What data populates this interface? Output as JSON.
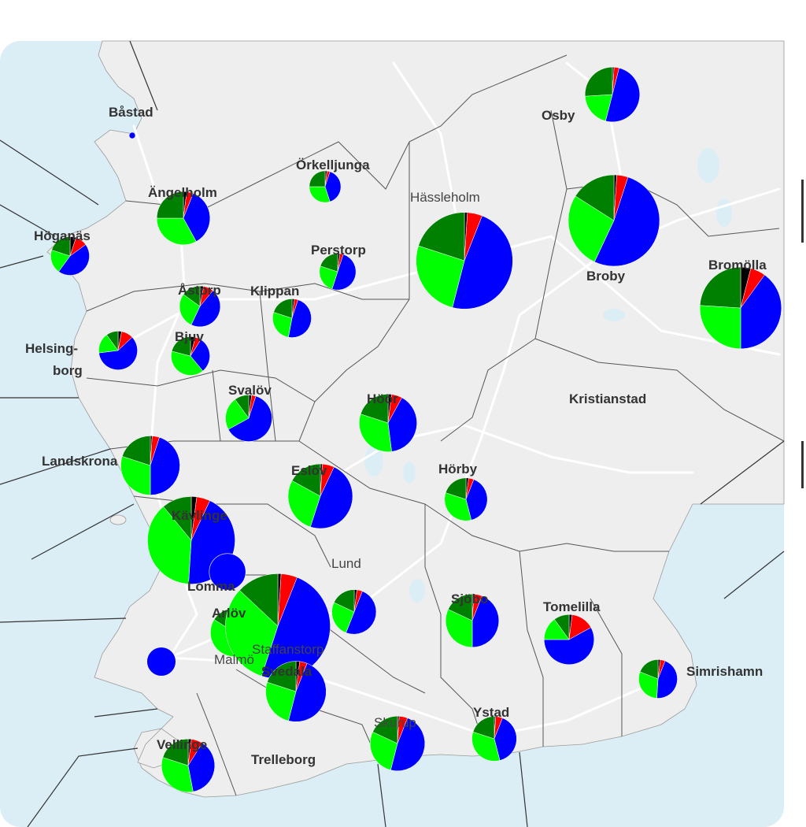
{
  "colors": {
    "sea": "#dbeef6",
    "land": "#eeeeee",
    "road": "#ffffff",
    "border": "#555555",
    "black": "#000000",
    "red": "#ff0000",
    "dark_green": "#008000",
    "light_green": "#00ff00",
    "blue": "#0000ff",
    "pie_outline": "#ffffff"
  },
  "slice_colors": [
    "#000000",
    "#ff0000",
    "#0000ff",
    "#00ff00",
    "#008000"
  ],
  "places": [
    {
      "name": "Båstad",
      "weight": "bold",
      "pie": [
        0,
        0,
        100,
        0,
        0
      ],
      "size": 3
    },
    {
      "name": "Osby",
      "weight": "bold",
      "pie": [
        1,
        3,
        50,
        20,
        26
      ],
      "size": 18
    },
    {
      "name": "Örkelljunga",
      "weight": "bold",
      "pie": [
        2,
        3,
        40,
        30,
        25
      ],
      "size": 6
    },
    {
      "name": "Ängelholm",
      "weight": "bold",
      "pie": [
        2,
        4,
        36,
        33,
        25
      ],
      "size": 17
    },
    {
      "name": "Hässleholm",
      "weight": "normal",
      "pie": [
        1,
        5,
        48,
        26,
        20
      ],
      "size": 56
    },
    {
      "name": "Höganäs",
      "weight": "bold",
      "pie": [
        5,
        10,
        45,
        20,
        20
      ],
      "size": 9
    },
    {
      "name": "Perstorp",
      "weight": "bold",
      "pie": [
        2,
        3,
        50,
        25,
        20
      ],
      "size": 8
    },
    {
      "name": "Broby",
      "weight": "bold",
      "pie": [
        1,
        4,
        52,
        27,
        16
      ],
      "size": 50
    },
    {
      "name": "Bromölla",
      "weight": "bold",
      "pie": [
        4,
        6,
        40,
        26,
        24
      ],
      "size": 40
    },
    {
      "name": "Åstorp",
      "weight": "bold",
      "pie": [
        3,
        8,
        46,
        28,
        15
      ],
      "size": 10
    },
    {
      "name": "Klippan",
      "weight": "bold",
      "pie": [
        2,
        3,
        48,
        27,
        20
      ],
      "size": 9
    },
    {
      "name": "Helsing-",
      "weight": "bold"
    },
    {
      "name": "borg",
      "weight": "bold"
    },
    {
      "name": "Bjuv",
      "weight": "bold",
      "pie": [
        3,
        10,
        60,
        17,
        10
      ],
      "size": 9
    },
    {
      "name": "Svalöv",
      "weight": "bold",
      "pie": [
        4,
        5,
        30,
        40,
        21
      ],
      "size": 9
    },
    {
      "name": "Höör",
      "weight": "bold",
      "pie": [
        2,
        3,
        62,
        23,
        10
      ],
      "size": 13
    },
    {
      "name": "Kristianstad",
      "weight": "bold"
    },
    {
      "name": "Landskrona",
      "weight": "bold",
      "pie": [
        2,
        6,
        40,
        32,
        20
      ],
      "size": 20
    },
    {
      "name": "Eslöv",
      "weight": "bold",
      "pie": [
        1,
        4,
        45,
        30,
        20
      ],
      "size": 21
    },
    {
      "name": "Hörby",
      "weight": "bold",
      "pie": [
        1,
        6,
        48,
        28,
        17
      ],
      "size": 25
    },
    {
      "name": "Kävlinge",
      "weight": "bold",
      "pie": [
        2,
        4,
        40,
        34,
        20
      ],
      "size": 11
    },
    {
      "name": "Lund",
      "weight": "normal",
      "pie": [
        2,
        5,
        44,
        38,
        11
      ],
      "size": 46
    },
    {
      "name": "Lomma",
      "weight": "bold",
      "pie": [
        0,
        0,
        100,
        0,
        0
      ],
      "size": 8
    },
    {
      "name": "Sjöbo",
      "weight": "bold",
      "pie": [
        2,
        4,
        50,
        26,
        18
      ],
      "size": 12
    },
    {
      "name": "Tomelilla",
      "weight": "bold",
      "pie": [
        1,
        5,
        44,
        32,
        18
      ],
      "size": 17
    },
    {
      "name": "Arlöv",
      "weight": "bold",
      "pie": [
        2,
        15,
        58,
        15,
        10
      ],
      "size": 15
    },
    {
      "name": "Staffanstorp",
      "weight": "normal",
      "pie": [
        2,
        6,
        40,
        36,
        16
      ],
      "size": 14
    },
    {
      "name": "Malmö",
      "weight": "normal",
      "pie": [
        1,
        5,
        49,
        32,
        13
      ],
      "size": 66
    },
    {
      "name": "Svedala",
      "weight": "bold",
      "pie": [
        0,
        0,
        100,
        0,
        0
      ],
      "size": 5
    },
    {
      "name": "Simrishamn",
      "weight": "bold",
      "pie": [
        2,
        4,
        48,
        26,
        20
      ],
      "size": 22
    },
    {
      "name": "Skurup",
      "weight": "normal",
      "pie": [
        2,
        4,
        45,
        30,
        19
      ],
      "size": 9
    },
    {
      "name": "Ystad",
      "weight": "bold",
      "pie": [
        1,
        5,
        48,
        28,
        18
      ],
      "size": 18
    },
    {
      "name": "Vellinge",
      "weight": "bold",
      "pie": [
        1,
        5,
        40,
        34,
        20
      ],
      "size": 12
    },
    {
      "name": "Trelleborg",
      "weight": "bold",
      "pie": [
        2,
        7,
        38,
        33,
        20
      ],
      "size": 17
    }
  ]
}
